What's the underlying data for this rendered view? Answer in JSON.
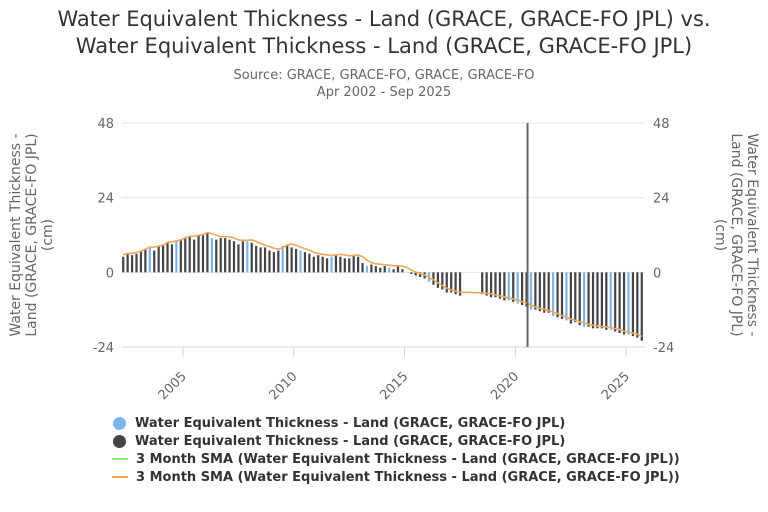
{
  "title_line1": "Water Equivalent Thickness - Land (GRACE, GRACE-FO JPL) vs.",
  "title_line2": "Water Equivalent Thickness - Land (GRACE, GRACE-FO JPL)",
  "subtitle_line1": "Source: GRACE, GRACE-FO, GRACE, GRACE-FO",
  "subtitle_line2": "Apr 2002 - Sep 2025",
  "chart_data": {
    "type": "bar",
    "ylabel_left": "Water Equivalent Thickness - Land (GRACE, GRACE-FO JPL) (cm)",
    "ylabel_right": "Water Equivalent Thickness - Land (GRACE, GRACE-FO JPL) (cm)",
    "ylabel_lines": [
      "Water Equivalent Thickness -",
      "Land (GRACE, GRACE-FO JPL)",
      "(cm)"
    ],
    "ylim": [
      -24,
      48
    ],
    "yticks": [
      "48",
      "24",
      "0",
      "-24"
    ],
    "xlim": [
      2002.25,
      2025.85
    ],
    "xticks": [
      "2005",
      "2010",
      "2015",
      "2020",
      "2025"
    ],
    "vertical_marker_x": 2020.55,
    "grid": true,
    "legend_position": "bottom",
    "colors": {
      "blue": "#7cb5ec",
      "dark": "#434348",
      "green": "#90ed7d",
      "orange": "#f7a35c"
    },
    "series": [
      {
        "name": "Water Equivalent Thickness - Land (GRACE, GRACE-FO JPL)",
        "color": "#7cb5ec",
        "points": [
          [
            2003.5,
            8
          ],
          [
            2004.7,
            10
          ],
          [
            2006.3,
            11
          ],
          [
            2007.9,
            10
          ],
          [
            2009.5,
            8.5
          ],
          [
            2010.3,
            7
          ],
          [
            2011.7,
            5
          ],
          [
            2013.3,
            2
          ],
          [
            2014.3,
            1.5
          ],
          [
            2016.1,
            -3
          ],
          [
            2019.7,
            -9
          ],
          [
            2020.1,
            -10
          ],
          [
            2020.7,
            -12
          ],
          [
            2021.7,
            -14
          ],
          [
            2022.3,
            -15.5
          ],
          [
            2023.1,
            -17.5
          ],
          [
            2024.3,
            -18.5
          ],
          [
            2025.1,
            -20
          ]
        ]
      },
      {
        "name": "Water Equivalent Thickness - Land (GRACE, GRACE-FO JPL)",
        "color": "#434348",
        "points": [
          [
            2002.3,
            5
          ],
          [
            2002.5,
            6
          ],
          [
            2002.7,
            5.5
          ],
          [
            2002.9,
            6
          ],
          [
            2003.1,
            7
          ],
          [
            2003.3,
            7.5
          ],
          [
            2003.7,
            7
          ],
          [
            2003.9,
            8.5
          ],
          [
            2004.1,
            9
          ],
          [
            2004.3,
            9.5
          ],
          [
            2004.5,
            9
          ],
          [
            2004.9,
            10.5
          ],
          [
            2005.1,
            11
          ],
          [
            2005.3,
            11.5
          ],
          [
            2005.5,
            10.5
          ],
          [
            2005.7,
            12
          ],
          [
            2005.9,
            12
          ],
          [
            2006.1,
            12.5
          ],
          [
            2006.5,
            10.5
          ],
          [
            2006.7,
            11
          ],
          [
            2006.9,
            11
          ],
          [
            2007.1,
            10.5
          ],
          [
            2007.3,
            10
          ],
          [
            2007.5,
            9
          ],
          [
            2007.7,
            10
          ],
          [
            2008.1,
            9.5
          ],
          [
            2008.3,
            8.5
          ],
          [
            2008.5,
            8
          ],
          [
            2008.7,
            8
          ],
          [
            2008.9,
            7
          ],
          [
            2009.1,
            6.5
          ],
          [
            2009.3,
            7
          ],
          [
            2009.7,
            9
          ],
          [
            2009.9,
            8
          ],
          [
            2010.1,
            7.5
          ],
          [
            2010.5,
            6.5
          ],
          [
            2010.7,
            6
          ],
          [
            2010.9,
            5
          ],
          [
            2011.1,
            5.5
          ],
          [
            2011.3,
            5
          ],
          [
            2011.5,
            4.5
          ],
          [
            2011.9,
            5.5
          ],
          [
            2012.1,
            5
          ],
          [
            2012.3,
            4.5
          ],
          [
            2012.5,
            4.5
          ],
          [
            2012.7,
            5.5
          ],
          [
            2012.9,
            5
          ],
          [
            2013.1,
            3
          ],
          [
            2013.5,
            2.5
          ],
          [
            2013.7,
            2
          ],
          [
            2013.9,
            1.5
          ],
          [
            2014.1,
            2
          ],
          [
            2014.5,
            1
          ],
          [
            2014.7,
            2
          ],
          [
            2014.9,
            1
          ],
          [
            2015.1,
            0
          ],
          [
            2015.3,
            -0.5
          ],
          [
            2015.5,
            -1
          ],
          [
            2015.7,
            -1.5
          ],
          [
            2015.9,
            -2
          ],
          [
            2016.3,
            -4
          ],
          [
            2016.5,
            -5
          ],
          [
            2016.7,
            -5.5
          ],
          [
            2016.9,
            -6.5
          ],
          [
            2017.1,
            -6.5
          ],
          [
            2017.3,
            -7
          ],
          [
            2017.5,
            -7.5
          ],
          [
            2018.5,
            -7
          ],
          [
            2018.7,
            -7.5
          ],
          [
            2018.9,
            -8
          ],
          [
            2019.1,
            -8
          ],
          [
            2019.3,
            -8.5
          ],
          [
            2019.5,
            -9
          ],
          [
            2019.9,
            -9.5
          ],
          [
            2020.3,
            -10.5
          ],
          [
            2020.5,
            -11
          ],
          [
            2020.9,
            -12
          ],
          [
            2021.1,
            -12.5
          ],
          [
            2021.3,
            -13
          ],
          [
            2021.5,
            -13
          ],
          [
            2021.9,
            -14.5
          ],
          [
            2022.1,
            -15
          ],
          [
            2022.5,
            -16.5
          ],
          [
            2022.7,
            -16
          ],
          [
            2022.9,
            -17
          ],
          [
            2023.3,
            -17.5
          ],
          [
            2023.5,
            -18
          ],
          [
            2023.7,
            -18
          ],
          [
            2023.9,
            -18
          ],
          [
            2024.1,
            -18.5
          ],
          [
            2024.5,
            -19
          ],
          [
            2024.7,
            -19.5
          ],
          [
            2024.9,
            -20
          ],
          [
            2025.3,
            -20.5
          ],
          [
            2025.5,
            -21
          ],
          [
            2025.7,
            -22
          ]
        ]
      },
      {
        "name": "3 Month SMA (Water Equivalent Thickness - Land (GRACE, GRACE-FO JPL))",
        "color": "#90ed7d",
        "type": "line"
      },
      {
        "name": "3 Month SMA (Water Equivalent Thickness - Land (GRACE, GRACE-FO JPL))",
        "color": "#f7a35c",
        "type": "line"
      }
    ]
  }
}
